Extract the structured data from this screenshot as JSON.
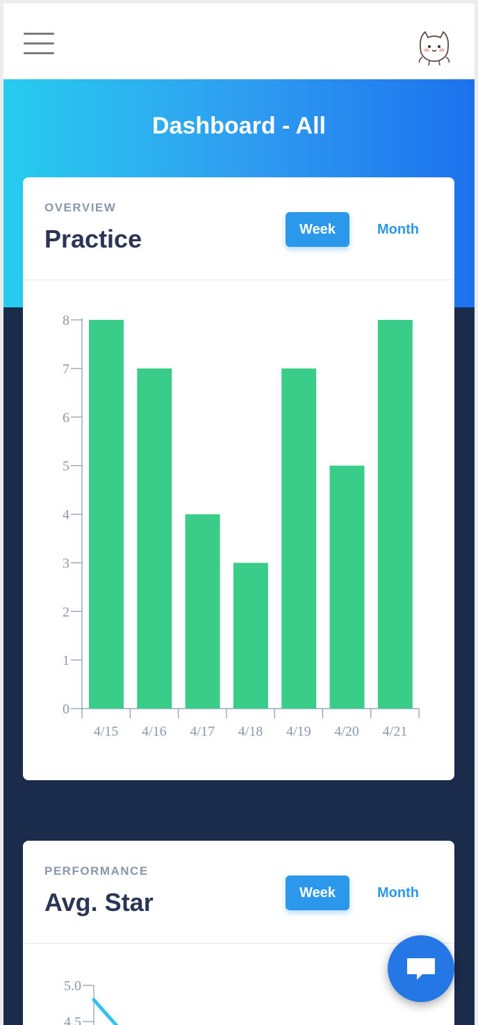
{
  "header": {
    "menu_icon": "hamburger-menu-icon",
    "avatar_icon": "cat-avatar"
  },
  "hero": {
    "title": "Dashboard - All"
  },
  "practice_card": {
    "eyebrow": "OVERVIEW",
    "title": "Practice",
    "week_label": "Week",
    "month_label": "Month",
    "selected": "Week"
  },
  "star_card": {
    "eyebrow": "PERFORMANCE",
    "title": "Avg. Star",
    "week_label": "Week",
    "month_label": "Month",
    "selected": "Week"
  },
  "chat_button": {
    "icon": "chat-bubble-icon"
  },
  "colors": {
    "bar": "#3acd8a",
    "line": "#2fc3ef",
    "accent": "#2b98ec",
    "dark_bg": "#1b2b4b"
  },
  "chart_data": [
    {
      "type": "bar",
      "categories": [
        "4/15",
        "4/16",
        "4/17",
        "4/18",
        "4/19",
        "4/20",
        "4/21"
      ],
      "values": [
        8,
        7,
        4,
        3,
        7,
        5,
        8
      ],
      "yticks": [
        0,
        1,
        2,
        3,
        4,
        5,
        6,
        7,
        8
      ],
      "ylim": [
        0,
        8
      ],
      "title": "",
      "xlabel": "",
      "ylabel": ""
    },
    {
      "type": "line",
      "yticks": [
        "5.0",
        "4.5"
      ],
      "ylim_visible": [
        4.5,
        5.0
      ],
      "values": [
        4.8,
        4.45
      ],
      "partial": true
    }
  ]
}
